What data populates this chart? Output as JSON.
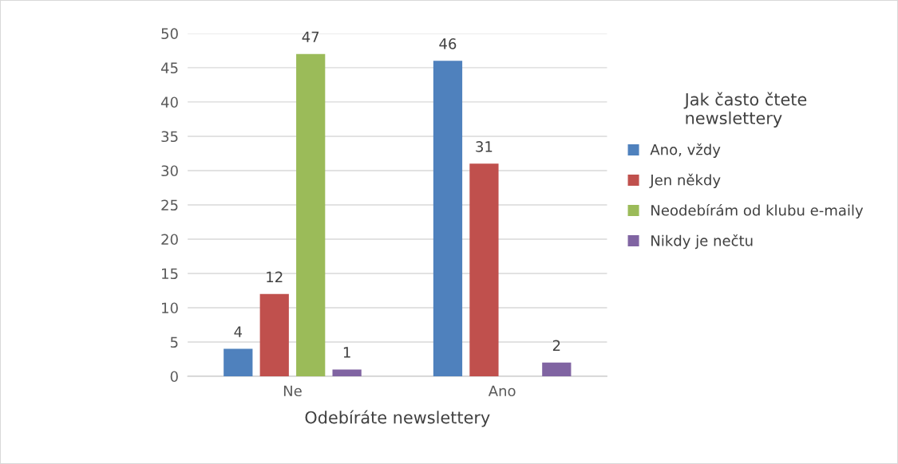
{
  "chart_data": {
    "type": "bar",
    "xlabel": "Odebíráte newslettery",
    "legend_title": "Jak často čtete newslettery",
    "categories": [
      "Ne",
      "Ano"
    ],
    "series": [
      {
        "name": "Ano, vždy",
        "color": "#4f81bd",
        "values": [
          4,
          46
        ]
      },
      {
        "name": "Jen někdy",
        "color": "#c0504d",
        "values": [
          12,
          31
        ]
      },
      {
        "name": "Neodebírám od klubu e-maily",
        "color": "#9bbb59",
        "values": [
          47,
          null
        ]
      },
      {
        "name": "Nikdy je nečtu",
        "color": "#8064a2",
        "values": [
          1,
          2
        ]
      }
    ],
    "ylim": [
      0,
      50
    ],
    "yticks": [
      0,
      5,
      10,
      15,
      20,
      25,
      30,
      35,
      40,
      45,
      50
    ],
    "grid": "y",
    "legend": "right",
    "data_labels": true
  }
}
